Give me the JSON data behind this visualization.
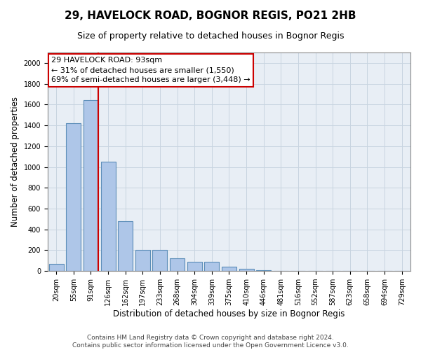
{
  "title_line1": "29, HAVELOCK ROAD, BOGNOR REGIS, PO21 2HB",
  "title_line2": "Size of property relative to detached houses in Bognor Regis",
  "xlabel": "Distribution of detached houses by size in Bognor Regis",
  "ylabel": "Number of detached properties",
  "categories": [
    "20sqm",
    "55sqm",
    "91sqm",
    "126sqm",
    "162sqm",
    "197sqm",
    "233sqm",
    "268sqm",
    "304sqm",
    "339sqm",
    "375sqm",
    "410sqm",
    "446sqm",
    "481sqm",
    "516sqm",
    "552sqm",
    "587sqm",
    "623sqm",
    "658sqm",
    "694sqm",
    "729sqm"
  ],
  "values": [
    70,
    1420,
    1640,
    1050,
    480,
    200,
    200,
    120,
    90,
    90,
    40,
    20,
    5,
    0,
    0,
    0,
    0,
    0,
    0,
    0,
    0
  ],
  "bar_color": "#aec6e8",
  "bar_edgecolor": "#5b8db8",
  "bar_linewidth": 0.8,
  "vline_color": "#cc0000",
  "annotation_line1": "29 HAVELOCK ROAD: 93sqm",
  "annotation_line2": "← 31% of detached houses are smaller (1,550)",
  "annotation_line3": "69% of semi-detached houses are larger (3,448) →",
  "annotation_box_color": "#ffffff",
  "annotation_box_edgecolor": "#cc0000",
  "ylim": [
    0,
    2100
  ],
  "yticks": [
    0,
    200,
    400,
    600,
    800,
    1000,
    1200,
    1400,
    1600,
    1800,
    2000
  ],
  "grid_color": "#c8d4e0",
  "background_color": "#e8eef5",
  "footer_line1": "Contains HM Land Registry data © Crown copyright and database right 2024.",
  "footer_line2": "Contains public sector information licensed under the Open Government Licence v3.0.",
  "title_fontsize": 11,
  "subtitle_fontsize": 9,
  "axis_label_fontsize": 8.5,
  "tick_fontsize": 7,
  "annotation_fontsize": 8,
  "footer_fontsize": 6.5
}
